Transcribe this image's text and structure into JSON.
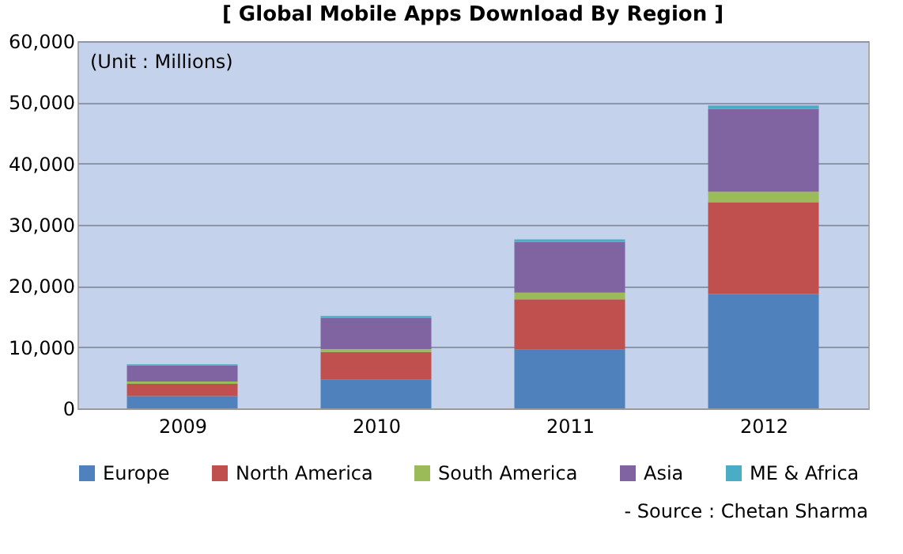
{
  "chart_data": {
    "type": "bar",
    "stacked": true,
    "title": "[ Global Mobile Apps Download By Region ]",
    "categories": [
      "2009",
      "2010",
      "2011",
      "2012"
    ],
    "series": [
      {
        "name": "Europe",
        "color": "#4f81bd",
        "values": [
          2000,
          4700,
          9600,
          18700
        ]
      },
      {
        "name": "North America",
        "color": "#c0504d",
        "values": [
          2000,
          4500,
          8200,
          15000
        ]
      },
      {
        "name": "South America",
        "color": "#9bbb59",
        "values": [
          400,
          500,
          1100,
          1700
        ]
      },
      {
        "name": "Asia",
        "color": "#8064a2",
        "values": [
          2600,
          5100,
          8300,
          13500
        ]
      },
      {
        "name": "ME & Africa",
        "color": "#4bacc6",
        "values": [
          200,
          300,
          400,
          600
        ]
      }
    ],
    "ylim": [
      0,
      60000
    ],
    "yticks": [
      0,
      {
        "value": 10000,
        "label": "10,000"
      },
      {
        "value": 20000,
        "label": "20,000"
      },
      {
        "value": 30000,
        "label": "30,000"
      },
      {
        "value": 40000,
        "label": "40,000"
      },
      {
        "value": 50000,
        "label": "50,000"
      },
      {
        "value": 60000,
        "label": "60,000"
      }
    ],
    "grid": "y",
    "legend": "bottom",
    "annotations": [
      "(Unit : Millions)",
      "- Source : Chetan Sharma"
    ]
  }
}
